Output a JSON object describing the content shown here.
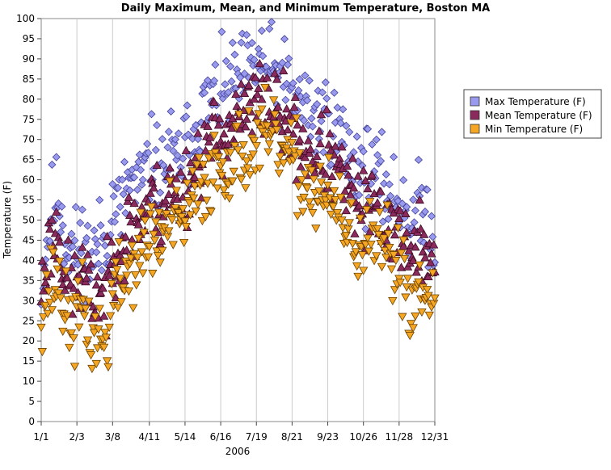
{
  "chart_data": {
    "type": "scatter",
    "title": "Daily Maximum, Mean, and Minimum Temperature, Boston MA",
    "xlabel": "2006",
    "ylabel": "Temperature (F)",
    "x_tick_labels": [
      "1/1",
      "2/3",
      "3/8",
      "4/11",
      "5/14",
      "6/16",
      "7/19",
      "8/21",
      "9/23",
      "10/26",
      "11/28",
      "12/31"
    ],
    "x_tick_days": [
      1,
      34,
      67,
      101,
      134,
      167,
      200,
      233,
      266,
      299,
      332,
      365
    ],
    "xlim": [
      1,
      365
    ],
    "ylim": [
      0,
      100
    ],
    "y_ticks": [
      0,
      5,
      10,
      15,
      20,
      25,
      30,
      35,
      40,
      45,
      50,
      55,
      60,
      65,
      70,
      75,
      80,
      85,
      90,
      95,
      100
    ],
    "grid": "vertical",
    "legend": "right",
    "series": [
      {
        "name": "Max Temperature (F)",
        "marker": "diamond",
        "color": "#9999ee",
        "stroke": "#44449a",
        "anchors": [
          [
            1,
            36
          ],
          [
            10,
            52
          ],
          [
            17,
            57
          ],
          [
            24,
            44
          ],
          [
            32,
            42
          ],
          [
            40,
            45
          ],
          [
            47,
            40
          ],
          [
            54,
            44
          ],
          [
            61,
            44
          ],
          [
            68,
            55
          ],
          [
            75,
            52
          ],
          [
            82,
            60
          ],
          [
            90,
            57
          ],
          [
            98,
            62
          ],
          [
            105,
            65
          ],
          [
            112,
            60
          ],
          [
            119,
            68
          ],
          [
            126,
            63
          ],
          [
            133,
            68
          ],
          [
            140,
            70
          ],
          [
            147,
            76
          ],
          [
            154,
            78
          ],
          [
            161,
            80
          ],
          [
            168,
            81
          ],
          [
            175,
            83
          ],
          [
            182,
            84
          ],
          [
            189,
            85
          ],
          [
            196,
            87
          ],
          [
            203,
            90
          ],
          [
            210,
            88
          ],
          [
            217,
            86
          ],
          [
            224,
            84
          ],
          [
            231,
            82
          ],
          [
            238,
            80
          ],
          [
            245,
            78
          ],
          [
            252,
            76
          ],
          [
            259,
            75
          ],
          [
            266,
            76
          ],
          [
            273,
            72
          ],
          [
            280,
            70
          ],
          [
            287,
            65
          ],
          [
            294,
            64
          ],
          [
            301,
            62
          ],
          [
            308,
            63
          ],
          [
            315,
            58
          ],
          [
            322,
            58
          ],
          [
            329,
            54
          ],
          [
            336,
            56
          ],
          [
            343,
            48
          ],
          [
            350,
            52
          ],
          [
            357,
            52
          ],
          [
            365,
            45
          ]
        ],
        "noise": 5.5,
        "seed": 11
      },
      {
        "name": "Mean Temperature (F)",
        "marker": "triangle-up",
        "color": "#8b2a5c",
        "stroke": "#3a0a22",
        "anchors": [
          [
            1,
            33
          ],
          [
            10,
            45
          ],
          [
            17,
            47
          ],
          [
            24,
            35
          ],
          [
            32,
            33
          ],
          [
            40,
            37
          ],
          [
            47,
            30
          ],
          [
            54,
            33
          ],
          [
            61,
            30
          ],
          [
            68,
            44
          ],
          [
            75,
            43
          ],
          [
            82,
            48
          ],
          [
            90,
            48
          ],
          [
            98,
            53
          ],
          [
            105,
            55
          ],
          [
            112,
            52
          ],
          [
            119,
            58
          ],
          [
            126,
            55
          ],
          [
            133,
            58
          ],
          [
            140,
            61
          ],
          [
            147,
            65
          ],
          [
            154,
            68
          ],
          [
            161,
            71
          ],
          [
            168,
            72
          ],
          [
            175,
            73
          ],
          [
            182,
            74
          ],
          [
            189,
            76
          ],
          [
            196,
            78
          ],
          [
            203,
            80
          ],
          [
            210,
            79
          ],
          [
            217,
            77
          ],
          [
            224,
            75
          ],
          [
            231,
            73
          ],
          [
            238,
            70
          ],
          [
            245,
            68
          ],
          [
            252,
            66
          ],
          [
            259,
            66
          ],
          [
            266,
            66
          ],
          [
            273,
            62
          ],
          [
            280,
            60
          ],
          [
            287,
            56
          ],
          [
            294,
            54
          ],
          [
            301,
            52
          ],
          [
            308,
            53
          ],
          [
            315,
            50
          ],
          [
            322,
            50
          ],
          [
            329,
            47
          ],
          [
            336,
            48
          ],
          [
            343,
            38
          ],
          [
            350,
            44
          ],
          [
            357,
            44
          ],
          [
            365,
            38
          ]
        ],
        "noise": 5,
        "seed": 23
      },
      {
        "name": "Min Temperature (F)",
        "marker": "triangle-down",
        "color": "#f5a623",
        "stroke": "#6b4200",
        "anchors": [
          [
            1,
            28
          ],
          [
            10,
            34
          ],
          [
            17,
            35
          ],
          [
            24,
            26
          ],
          [
            32,
            24
          ],
          [
            40,
            29
          ],
          [
            47,
            20
          ],
          [
            54,
            22
          ],
          [
            61,
            18
          ],
          [
            68,
            33
          ],
          [
            75,
            34
          ],
          [
            82,
            38
          ],
          [
            90,
            40
          ],
          [
            98,
            44
          ],
          [
            105,
            46
          ],
          [
            112,
            45
          ],
          [
            119,
            50
          ],
          [
            126,
            48
          ],
          [
            133,
            50
          ],
          [
            140,
            54
          ],
          [
            147,
            57
          ],
          [
            154,
            60
          ],
          [
            161,
            63
          ],
          [
            168,
            64
          ],
          [
            175,
            65
          ],
          [
            182,
            66
          ],
          [
            189,
            67
          ],
          [
            196,
            68
          ],
          [
            203,
            70
          ],
          [
            210,
            70
          ],
          [
            217,
            69
          ],
          [
            224,
            67
          ],
          [
            231,
            65
          ],
          [
            238,
            62
          ],
          [
            245,
            60
          ],
          [
            252,
            57
          ],
          [
            259,
            57
          ],
          [
            266,
            55
          ],
          [
            273,
            52
          ],
          [
            280,
            50
          ],
          [
            287,
            46
          ],
          [
            294,
            45
          ],
          [
            301,
            42
          ],
          [
            308,
            45
          ],
          [
            315,
            41
          ],
          [
            322,
            42
          ],
          [
            329,
            38
          ],
          [
            336,
            39
          ],
          [
            343,
            27
          ],
          [
            350,
            34
          ],
          [
            357,
            36
          ],
          [
            365,
            30
          ]
        ],
        "noise": 5,
        "seed": 37
      }
    ]
  }
}
